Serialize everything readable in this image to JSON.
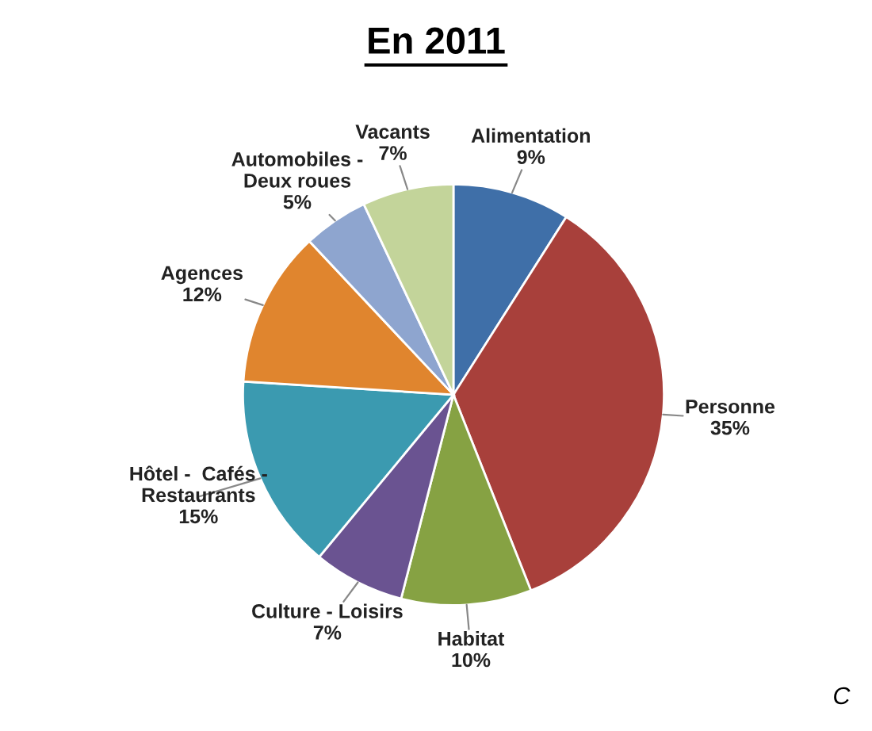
{
  "chart_data": {
    "type": "pie",
    "title": "En 2011",
    "categories": [
      "Alimentation",
      "Personne",
      "Habitat",
      "Culture - Loisirs",
      "Hôtel -  Cafés -\nRestaurants",
      "Agences",
      "Automobiles -\nDeux roues",
      "Vacants"
    ],
    "values": [
      9,
      35,
      10,
      7,
      15,
      12,
      5,
      7
    ],
    "value_labels": [
      "9%",
      "35%",
      "10%",
      "7%",
      "15%",
      "12%",
      "5%",
      "7%"
    ],
    "colors": [
      "#3f6fa8",
      "#a8403b",
      "#86a243",
      "#6a5391",
      "#3b9ab0",
      "#e0852e",
      "#8ea5cf",
      "#c3d49a"
    ],
    "annotations": [
      "C"
    ],
    "legend": false
  }
}
